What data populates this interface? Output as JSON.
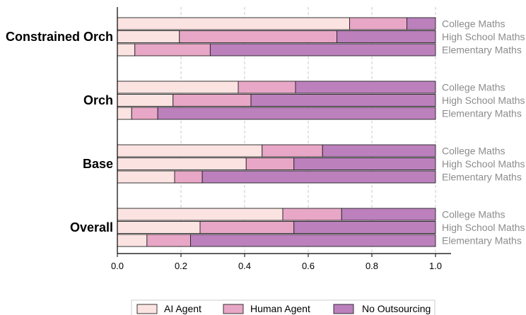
{
  "chart_data": {
    "type": "bar",
    "orientation": "horizontal",
    "stacked": true,
    "groups": [
      "Constrained Orch",
      "Orch",
      "Base",
      "Overall"
    ],
    "subcategories": [
      "College Maths",
      "High School Maths",
      "Elementary Maths"
    ],
    "series": [
      {
        "name": "AI Agent",
        "color": "#fbe3e1",
        "values": [
          [
            0.73,
            0.195,
            0.055
          ],
          [
            0.38,
            0.175,
            0.045
          ],
          [
            0.455,
            0.405,
            0.18
          ],
          [
            0.52,
            0.26,
            0.093
          ]
        ]
      },
      {
        "name": "Human Agent",
        "color": "#e8a7c6",
        "values": [
          [
            0.18,
            0.495,
            0.237
          ],
          [
            0.18,
            0.245,
            0.082
          ],
          [
            0.19,
            0.15,
            0.087
          ],
          [
            0.185,
            0.295,
            0.137
          ]
        ]
      },
      {
        "name": "No Outsourcing",
        "color": "#bc80bd",
        "values": [
          [
            0.09,
            0.31,
            0.708
          ],
          [
            0.44,
            0.58,
            0.873
          ],
          [
            0.355,
            0.445,
            0.733
          ],
          [
            0.295,
            0.445,
            0.77
          ]
        ]
      }
    ],
    "xlim": [
      0,
      1.05
    ],
    "xticks": [
      "0.0",
      "0.2",
      "0.4",
      "0.6",
      "0.8",
      "1.0"
    ],
    "grid": "vertical dashed",
    "legend_position": "bottom-center"
  }
}
